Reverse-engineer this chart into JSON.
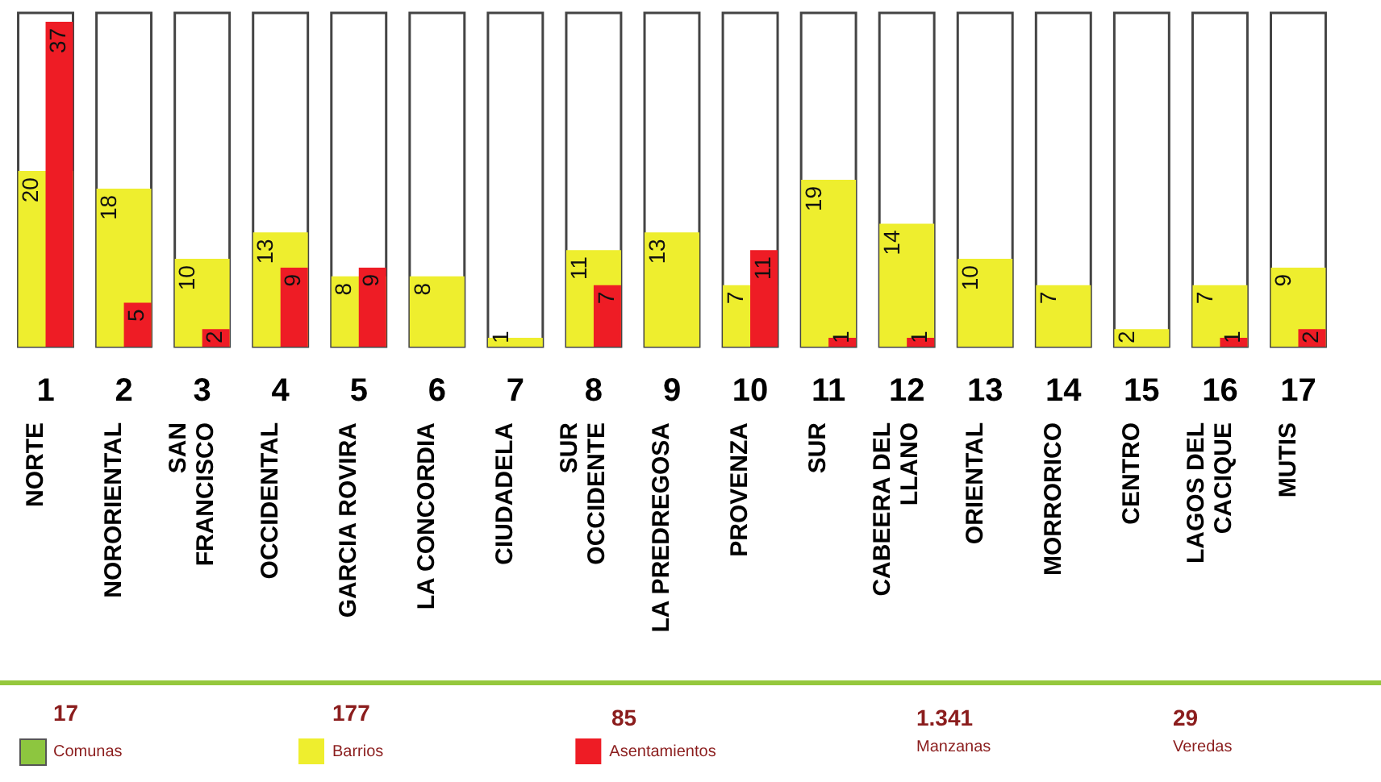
{
  "chart_data": {
    "type": "bar",
    "categories": [
      "1\nNORTE",
      "2\nNORORIENTAL",
      "3\nSAN\nFRANCISCO",
      "4\nOCCIDENTAL",
      "5\nGARCIA ROVIRA",
      "6\nLA CONCORDIA",
      "7\nCIUDADELA",
      "8\nSUR\nOCCIDENTE",
      "9\nLA PREDREGOSA",
      "10\nPROVENZA",
      "11\nSUR",
      "12\nCABEERA DEL\nLLANO",
      "13\nORIENTAL",
      "14\nMORRORICO",
      "15\nCENTRO",
      "16\nLAGOS DEL\nCACIQUE",
      "17\nMUTIS"
    ],
    "series": [
      {
        "name": "Barrios",
        "color": "#eeee2e",
        "values": [
          20,
          18,
          10,
          13,
          8,
          8,
          1,
          11,
          13,
          7,
          19,
          14,
          10,
          7,
          2,
          7,
          9
        ]
      },
      {
        "name": "Asentamientos",
        "color": "#ee1c25",
        "values": [
          37,
          5,
          2,
          9,
          9,
          null,
          null,
          7,
          null,
          11,
          1,
          1,
          null,
          null,
          null,
          1,
          2
        ]
      }
    ],
    "ylim": [
      0,
      38
    ],
    "data_labels": true,
    "legend": "bottom",
    "annotations": [
      "17",
      "Comunas",
      "177",
      "85",
      "1.341",
      "Manzanas",
      "29",
      "Veredas"
    ]
  }
}
